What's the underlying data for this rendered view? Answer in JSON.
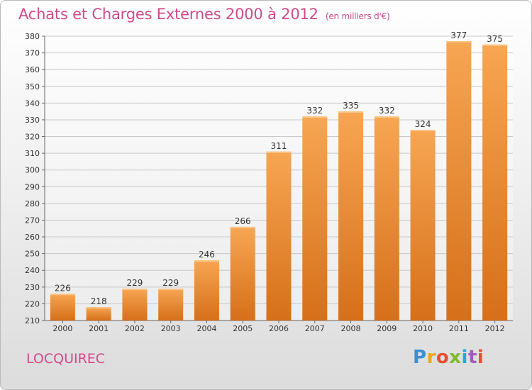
{
  "title": "Achats et Charges Externes 2000 à 2012",
  "unit": "(en milliers d'€)",
  "commune": "LOCQUIREC",
  "logo": {
    "p": "P",
    "r": "r",
    "o": "o",
    "x": "x",
    "i": "i",
    "t": "t",
    "i2": "i"
  },
  "colors": {
    "bar_top": "#f7a653",
    "bar_bottom": "#d66f19",
    "title": "#d04a8a",
    "grid": "#c8c8c8"
  },
  "chart_data": {
    "type": "bar",
    "title": "Achats et Charges Externes 2000 à 2012",
    "subtitle": "(en milliers d'€)",
    "categories": [
      "2000",
      "2001",
      "2002",
      "2003",
      "2004",
      "2005",
      "2006",
      "2007",
      "2008",
      "2009",
      "2010",
      "2011",
      "2012"
    ],
    "values": [
      226,
      218,
      229,
      229,
      246,
      266,
      311,
      332,
      335,
      332,
      324,
      377,
      375
    ],
    "ylim": [
      210,
      380
    ],
    "yticks": [
      210,
      220,
      230,
      240,
      250,
      260,
      270,
      280,
      290,
      300,
      310,
      320,
      330,
      340,
      350,
      360,
      370,
      380
    ],
    "grid": true,
    "xlabel": "",
    "ylabel": ""
  }
}
